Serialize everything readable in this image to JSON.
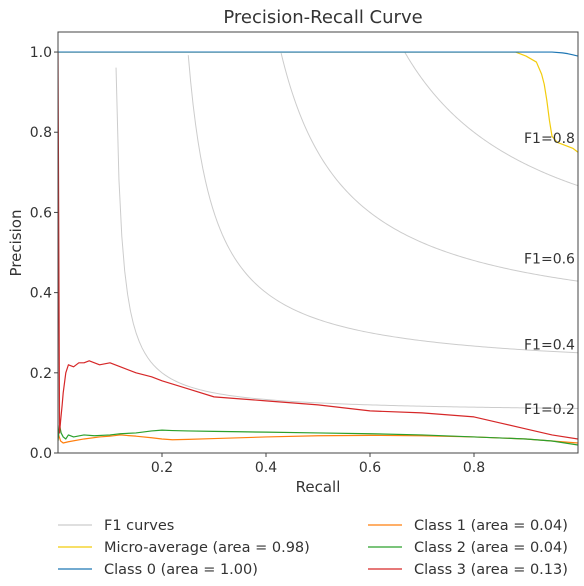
{
  "chart_data": {
    "type": "line",
    "title": "Precision-Recall Curve",
    "xlabel": "Recall",
    "ylabel": "Precision",
    "xlim": [
      0.0,
      1.0
    ],
    "ylim": [
      0.0,
      1.05
    ],
    "grid": false,
    "x_ticks": [
      {
        "value": 0.2,
        "label": "0.2"
      },
      {
        "value": 0.4,
        "label": "0.4"
      },
      {
        "value": 0.6,
        "label": "0.6"
      },
      {
        "value": 0.8,
        "label": "0.8"
      }
    ],
    "y_ticks": [
      {
        "value": 0.0,
        "label": "0.0"
      },
      {
        "value": 0.2,
        "label": "0.2"
      },
      {
        "value": 0.4,
        "label": "0.4"
      },
      {
        "value": 0.6,
        "label": "0.6"
      },
      {
        "value": 0.8,
        "label": "0.8"
      },
      {
        "value": 1.0,
        "label": "1.0"
      }
    ],
    "f1_curves": [
      {
        "f1": 0.2,
        "label": "F1=0.2"
      },
      {
        "f1": 0.4,
        "label": "F1=0.4"
      },
      {
        "f1": 0.6,
        "label": "F1=0.6"
      },
      {
        "f1": 0.8,
        "label": "F1=0.8"
      }
    ],
    "legend_placement": "below",
    "legend": [
      {
        "key": "f1",
        "label": "F1 curves",
        "color": "#cccccc"
      },
      {
        "key": "micro",
        "label": "Micro-average (area = 0.98)",
        "color": "#f2cc0c"
      },
      {
        "key": "class0",
        "label": "Class 0 (area = 1.00)",
        "color": "#1f77b4"
      },
      {
        "key": "class1",
        "label": "Class 1 (area = 0.04)",
        "color": "#ff7f0e"
      },
      {
        "key": "class2",
        "label": "Class 2 (area = 0.04)",
        "color": "#2ca02c"
      },
      {
        "key": "class3",
        "label": "Class 3 (area = 0.13)",
        "color": "#d62728"
      }
    ],
    "series": [
      {
        "key": "micro",
        "name": "Micro-average (area = 0.98)",
        "color": "#f2cc0c",
        "x": [
          0.0,
          0.88,
          0.9,
          0.92,
          0.925,
          0.93,
          0.935,
          0.94,
          0.945,
          0.95,
          0.96,
          0.97,
          0.98,
          0.99,
          1.0
        ],
        "y": [
          1.0,
          1.0,
          0.99,
          0.975,
          0.96,
          0.945,
          0.92,
          0.88,
          0.83,
          0.79,
          0.775,
          0.77,
          0.765,
          0.76,
          0.75
        ]
      },
      {
        "key": "class0",
        "name": "Class 0 (area = 1.00)",
        "color": "#1f77b4",
        "x": [
          0.0,
          0.95,
          0.97,
          0.98,
          0.99,
          1.0
        ],
        "y": [
          1.0,
          1.0,
          0.998,
          0.996,
          0.993,
          0.99
        ]
      },
      {
        "key": "class1",
        "name": "Class 1 (area = 0.04)",
        "color": "#ff7f0e",
        "x": [
          0.0,
          0.005,
          0.01,
          0.02,
          0.05,
          0.08,
          0.1,
          0.12,
          0.15,
          0.18,
          0.2,
          0.22,
          0.25,
          0.3,
          0.4,
          0.5,
          0.6,
          0.7,
          0.8,
          0.9,
          0.95,
          1.0
        ],
        "y": [
          0.05,
          0.03,
          0.025,
          0.028,
          0.035,
          0.04,
          0.042,
          0.045,
          0.042,
          0.038,
          0.035,
          0.033,
          0.034,
          0.036,
          0.04,
          0.043,
          0.044,
          0.043,
          0.04,
          0.035,
          0.03,
          0.025
        ]
      },
      {
        "key": "class2",
        "name": "Class 2 (area = 0.04)",
        "color": "#2ca02c",
        "x": [
          0.0,
          0.003,
          0.006,
          0.01,
          0.015,
          0.02,
          0.03,
          0.05,
          0.07,
          0.1,
          0.12,
          0.15,
          0.18,
          0.2,
          0.22,
          0.25,
          0.3,
          0.35,
          0.4,
          0.5,
          0.6,
          0.7,
          0.8,
          0.9,
          0.95,
          1.0
        ],
        "y": [
          0.03,
          0.07,
          0.05,
          0.04,
          0.035,
          0.045,
          0.04,
          0.045,
          0.043,
          0.045,
          0.048,
          0.05,
          0.055,
          0.057,
          0.056,
          0.055,
          0.054,
          0.053,
          0.052,
          0.05,
          0.048,
          0.045,
          0.04,
          0.035,
          0.03,
          0.02
        ]
      },
      {
        "key": "class3",
        "name": "Class 3 (area = 0.13)",
        "color": "#d62728",
        "x": [
          0.0,
          0.003,
          0.005,
          0.008,
          0.01,
          0.015,
          0.02,
          0.03,
          0.04,
          0.05,
          0.06,
          0.07,
          0.08,
          0.1,
          0.12,
          0.15,
          0.18,
          0.2,
          0.25,
          0.3,
          0.35,
          0.4,
          0.5,
          0.6,
          0.7,
          0.8,
          0.85,
          0.9,
          0.95,
          1.0
        ],
        "y": [
          1.0,
          0.05,
          0.08,
          0.12,
          0.15,
          0.2,
          0.22,
          0.215,
          0.225,
          0.225,
          0.23,
          0.225,
          0.22,
          0.225,
          0.215,
          0.2,
          0.19,
          0.18,
          0.16,
          0.14,
          0.135,
          0.13,
          0.12,
          0.105,
          0.1,
          0.09,
          0.075,
          0.06,
          0.045,
          0.035
        ]
      }
    ]
  }
}
